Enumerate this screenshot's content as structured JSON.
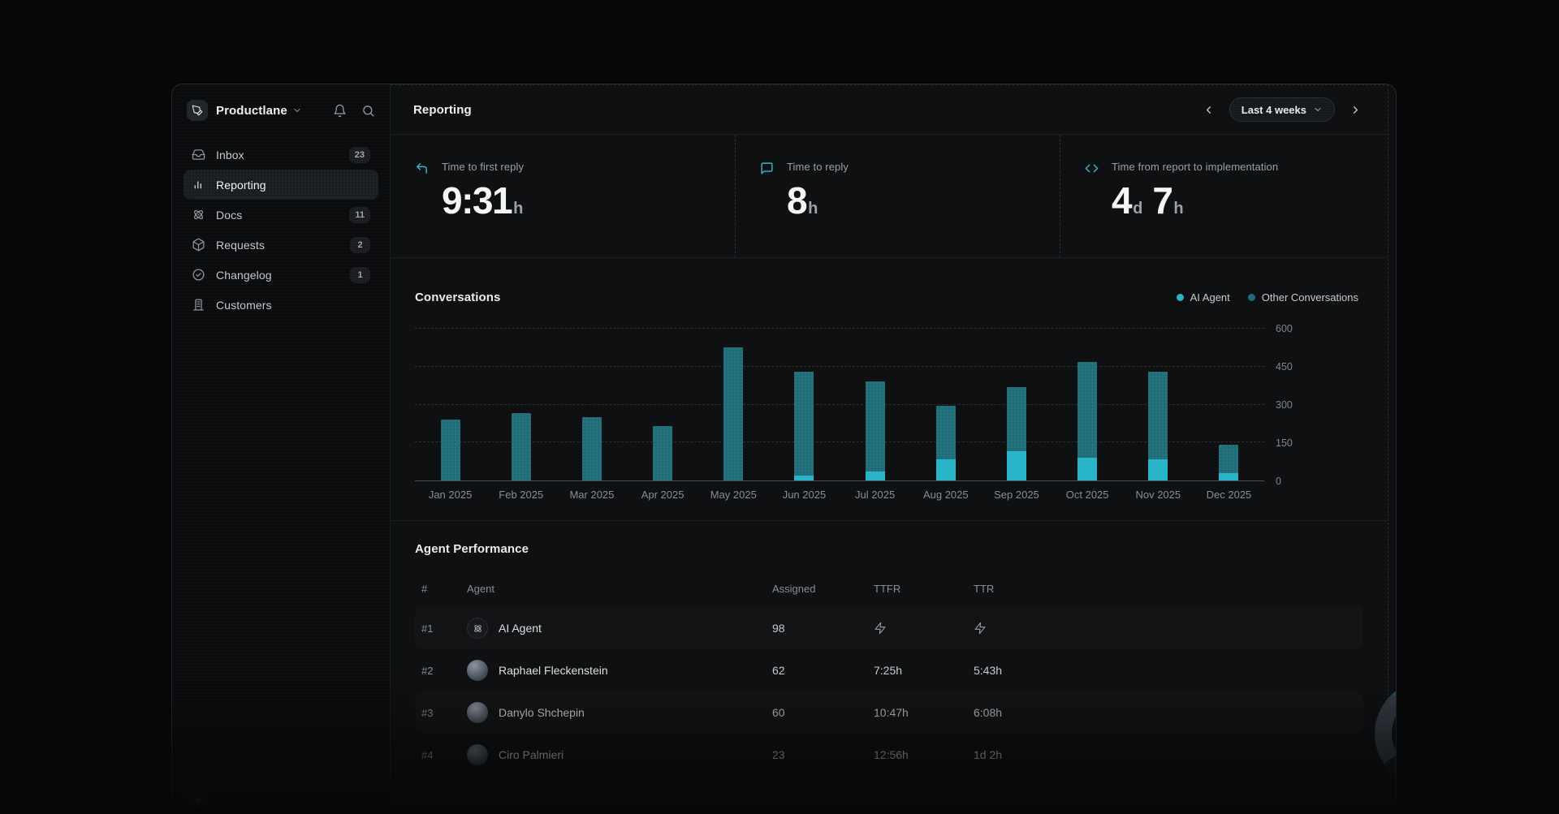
{
  "app": {
    "name": "Productlane"
  },
  "sidebar": {
    "items": [
      {
        "label": "Inbox",
        "icon": "inbox-icon",
        "badge": "23",
        "active": false
      },
      {
        "label": "Reporting",
        "icon": "bar-chart-icon",
        "badge": "",
        "active": true
      },
      {
        "label": "Docs",
        "icon": "atom-icon",
        "badge": "11",
        "active": false
      },
      {
        "label": "Requests",
        "icon": "cube-icon",
        "badge": "2",
        "active": false
      },
      {
        "label": "Changelog",
        "icon": "check-circle-icon",
        "badge": "1",
        "active": false
      },
      {
        "label": "Customers",
        "icon": "building-icon",
        "badge": "",
        "active": false
      }
    ],
    "help_label": "?"
  },
  "header": {
    "title": "Reporting",
    "range_label": "Last 4 weeks"
  },
  "stats": [
    {
      "icon": "reply-arrow-icon",
      "label": "Time to first reply",
      "value": "9:31",
      "unit": "h"
    },
    {
      "icon": "chat-bubble-icon",
      "label": "Time to reply",
      "value": "8",
      "unit": "h"
    },
    {
      "icon": "code-icon",
      "label": "Time from report to implementation",
      "value": "4",
      "unit": "d",
      "value2": "7",
      "unit2": "h"
    }
  ],
  "chart_data": {
    "type": "bar",
    "stacked": true,
    "title": "Conversations",
    "categories": [
      "Jan 2025",
      "Feb 2025",
      "Mar 2025",
      "Apr 2025",
      "May 2025",
      "Jun 2025",
      "Jul 2025",
      "Aug 2025",
      "Sep 2025",
      "Oct 2025",
      "Nov 2025",
      "Dec 2025"
    ],
    "series": [
      {
        "name": "AI Agent",
        "color": "#2ab4c7",
        "values": [
          0,
          0,
          0,
          0,
          0,
          20,
          35,
          85,
          115,
          90,
          85,
          30
        ]
      },
      {
        "name": "Other Conversations",
        "color": "#1e6d79",
        "values": [
          240,
          265,
          250,
          215,
          525,
          410,
          355,
          210,
          255,
          380,
          345,
          110
        ]
      }
    ],
    "ylim": [
      0,
      600
    ],
    "yticks": [
      0,
      150,
      300,
      450,
      600
    ],
    "grid": "dashed-horizontal",
    "legend_position": "top-right"
  },
  "table": {
    "title": "Agent Performance",
    "columns": [
      "#",
      "Agent",
      "Assigned",
      "TTFR",
      "TTR"
    ],
    "rows": [
      {
        "rank": "#1",
        "agent": "AI Agent",
        "avatar": "ai",
        "assigned": "98",
        "ttfr": "",
        "ttr": ""
      },
      {
        "rank": "#2",
        "agent": "Raphael Fleckenstein",
        "avatar": "p1",
        "assigned": "62",
        "ttfr": "7:25h",
        "ttr": "5:43h"
      },
      {
        "rank": "#3",
        "agent": "Danylo Shchepin",
        "avatar": "p2",
        "assigned": "60",
        "ttfr": "10:47h",
        "ttr": "6:08h"
      },
      {
        "rank": "#4",
        "agent": "Ciro Palmieri",
        "avatar": "p3",
        "assigned": "23",
        "ttfr": "12:56h",
        "ttr": "1d 2h"
      }
    ]
  }
}
